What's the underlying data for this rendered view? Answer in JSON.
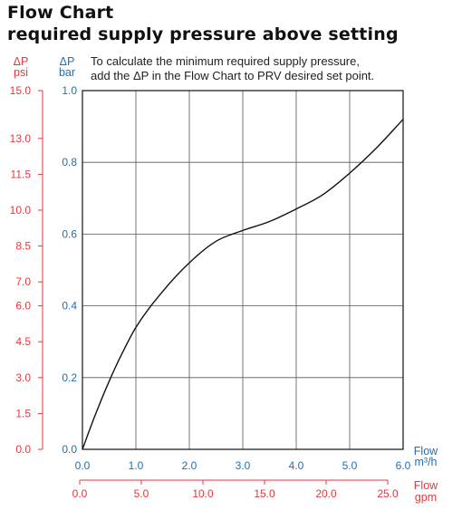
{
  "header": {
    "title": "Flow Chart",
    "subtitle": "required supply pressure above setting",
    "note_line1": "To calculate the minimum required supply pressure,",
    "note_line2": "add the ΔP in the Flow Chart to PRV desired set point."
  },
  "chart_data": {
    "type": "line",
    "title": "Flow Chart",
    "subtitle": "required supply pressure above setting",
    "annotation": [
      "To calculate the minimum required supply pressure,",
      "add the ΔP in the Flow Chart to PRV desired set point."
    ],
    "x_axis": {
      "label": [
        "Flow",
        "m³/h"
      ],
      "range": [
        0,
        6
      ],
      "ticks": [
        "0.0",
        "1.0",
        "2.0",
        "3.0",
        "4.0",
        "5.0",
        "6.0"
      ],
      "color": "#1f6fb5"
    },
    "x_axis_secondary": {
      "label": [
        "Flow",
        "gpm"
      ],
      "ticks": [
        "0.0",
        "5.0",
        "10.0",
        "15.0",
        "20.0",
        "25.0"
      ],
      "color": "#e03a3e"
    },
    "y_axis": {
      "label": [
        "ΔP",
        "bar"
      ],
      "range": [
        0,
        1
      ],
      "ticks": [
        "0.0",
        "0.2",
        "0.4",
        "0.6",
        "0.8",
        "1.0"
      ],
      "color": "#1f6fb5"
    },
    "y_axis_secondary": {
      "label": [
        "ΔP",
        "psi"
      ],
      "ticks": [
        "0.0",
        "1.5",
        "3.0",
        "4.5",
        "6.0",
        "7.0",
        "8.5",
        "10.0",
        "11.5",
        "13.0",
        "15.0"
      ],
      "color": "#e03a3e"
    },
    "grid": true,
    "series": [
      {
        "x": [
          0,
          0.25,
          0.5,
          0.75,
          1.0,
          1.5,
          2.0,
          2.5,
          3.0,
          3.5,
          4.0,
          4.5,
          5.0,
          5.5,
          6.0
        ],
        "y": [
          0,
          0.1,
          0.19,
          0.27,
          0.34,
          0.44,
          0.52,
          0.58,
          0.61,
          0.635,
          0.67,
          0.71,
          0.77,
          0.84,
          0.92
        ]
      }
    ]
  }
}
